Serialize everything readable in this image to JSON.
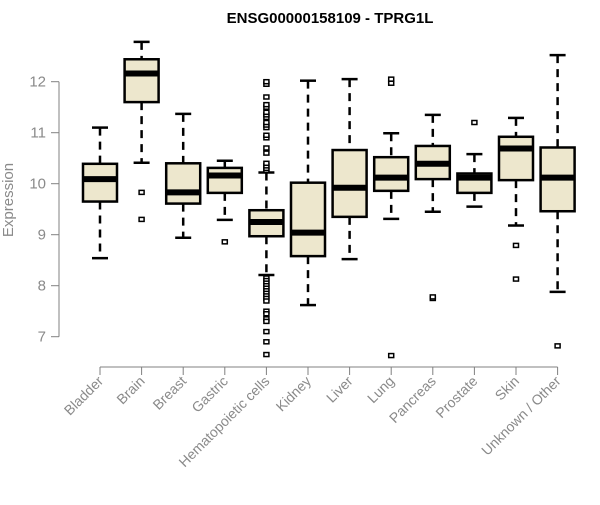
{
  "chart_data": {
    "type": "boxplot",
    "title": "ENSG00000158109 - TPRG1L",
    "xlabel": "",
    "ylabel": "Expression",
    "ylim": [
      6.5,
      12.9
    ],
    "yticks": [
      7,
      8,
      9,
      10,
      11,
      12
    ],
    "grid": false,
    "colors": {
      "box_fill": "#EDE7CD",
      "stroke": "#000000",
      "axis": "#808080",
      "label": "#8a8a8a",
      "title": "#000000"
    },
    "categories": [
      "Bladder",
      "Brain",
      "Breast",
      "Gastric",
      "Hematopoietic cells",
      "Kidney",
      "Liver",
      "Lung",
      "Pancreas",
      "Prostate",
      "Skin",
      "Unknown / Other"
    ],
    "series": [
      {
        "name": "Bladder",
        "whisker_low": 8.54,
        "q1": 9.65,
        "median": 10.09,
        "q3": 10.39,
        "whisker_high": 11.1,
        "outliers": []
      },
      {
        "name": "Brain",
        "whisker_low": 10.41,
        "q1": 11.6,
        "median": 12.16,
        "q3": 12.44,
        "whisker_high": 12.78,
        "outliers": [
          9.83,
          9.3
        ]
      },
      {
        "name": "Breast",
        "whisker_low": 8.94,
        "q1": 9.61,
        "median": 9.83,
        "q3": 10.4,
        "whisker_high": 11.37,
        "outliers": []
      },
      {
        "name": "Gastric",
        "whisker_low": 9.29,
        "q1": 9.82,
        "median": 10.16,
        "q3": 10.31,
        "whisker_high": 10.45,
        "outliers": [
          8.86
        ]
      },
      {
        "name": "Hematopoietic cells",
        "whisker_low": 8.21,
        "q1": 8.97,
        "median": 9.25,
        "q3": 9.48,
        "whisker_high": 10.22,
        "outliers": [
          10.26,
          10.3,
          10.35,
          10.4,
          10.6,
          10.7,
          10.9,
          10.95,
          11.1,
          11.15,
          11.2,
          11.3,
          11.35,
          11.4,
          11.5,
          11.55,
          11.7,
          11.95,
          12.0,
          8.15,
          8.1,
          8.05,
          8.0,
          7.95,
          7.9,
          7.85,
          7.8,
          7.75,
          7.7,
          7.5,
          7.45,
          7.35,
          7.3,
          7.1,
          6.9,
          6.65
        ]
      },
      {
        "name": "Kidney",
        "whisker_low": 7.62,
        "q1": 8.58,
        "median": 9.04,
        "q3": 10.02,
        "whisker_high": 12.02,
        "outliers": []
      },
      {
        "name": "Liver",
        "whisker_low": 8.52,
        "q1": 9.35,
        "median": 9.92,
        "q3": 10.66,
        "whisker_high": 12.05,
        "outliers": []
      },
      {
        "name": "Lung",
        "whisker_low": 9.31,
        "q1": 9.86,
        "median": 10.12,
        "q3": 10.52,
        "whisker_high": 10.99,
        "outliers": [
          12.05,
          11.97,
          6.63
        ]
      },
      {
        "name": "Pancreas",
        "whisker_low": 9.45,
        "q1": 10.09,
        "median": 10.39,
        "q3": 10.74,
        "whisker_high": 11.35,
        "outliers": [
          7.75,
          7.78
        ]
      },
      {
        "name": "Prostate",
        "whisker_low": 9.55,
        "q1": 9.82,
        "median": 10.12,
        "q3": 10.2,
        "whisker_high": 10.58,
        "outliers": [
          11.2
        ]
      },
      {
        "name": "Skin",
        "whisker_low": 9.18,
        "q1": 10.07,
        "median": 10.69,
        "q3": 10.92,
        "whisker_high": 11.29,
        "outliers": [
          8.79,
          8.13
        ]
      },
      {
        "name": "Unknown / Other",
        "whisker_low": 7.88,
        "q1": 9.46,
        "median": 10.12,
        "q3": 10.71,
        "whisker_high": 12.52,
        "outliers": [
          6.82
        ]
      }
    ]
  }
}
